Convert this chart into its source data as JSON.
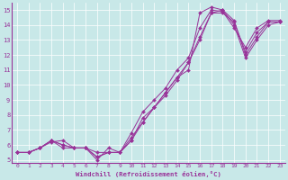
{
  "xlabel": "Windchill (Refroidissement éolien,°C)",
  "bg_color": "#c8e8e8",
  "line_color": "#993399",
  "xlim": [
    -0.5,
    23.5
  ],
  "ylim": [
    4.8,
    15.5
  ],
  "xticks": [
    0,
    1,
    2,
    3,
    4,
    5,
    6,
    7,
    8,
    9,
    10,
    11,
    12,
    13,
    14,
    15,
    16,
    17,
    18,
    19,
    20,
    21,
    22,
    23
  ],
  "yticks": [
    5,
    6,
    7,
    8,
    9,
    10,
    11,
    12,
    13,
    14,
    15
  ],
  "series": [
    [
      5.5,
      5.5,
      5.8,
      6.2,
      6.3,
      5.8,
      5.8,
      5.0,
      5.8,
      5.5,
      6.3,
      7.8,
      8.5,
      9.5,
      10.5,
      11.0,
      14.8,
      15.2,
      15.0,
      14.3,
      12.0,
      13.2,
      14.2,
      14.2
    ],
    [
      5.5,
      5.5,
      5.8,
      6.3,
      5.8,
      5.8,
      5.8,
      5.5,
      5.5,
      5.5,
      6.3,
      7.5,
      8.5,
      9.5,
      10.5,
      11.5,
      13.0,
      14.8,
      15.0,
      14.0,
      11.8,
      13.0,
      14.0,
      14.2
    ],
    [
      5.5,
      5.5,
      5.8,
      6.3,
      6.0,
      5.8,
      5.8,
      5.2,
      5.5,
      5.5,
      6.5,
      7.5,
      8.5,
      9.3,
      10.3,
      11.5,
      13.2,
      14.8,
      14.8,
      14.2,
      12.2,
      13.5,
      14.2,
      14.2
    ],
    [
      5.5,
      5.5,
      5.8,
      6.3,
      6.0,
      5.8,
      5.8,
      5.2,
      5.5,
      5.5,
      6.8,
      8.2,
      9.0,
      9.8,
      11.0,
      11.8,
      13.8,
      15.0,
      14.9,
      13.8,
      12.5,
      13.8,
      14.3,
      14.3
    ]
  ]
}
